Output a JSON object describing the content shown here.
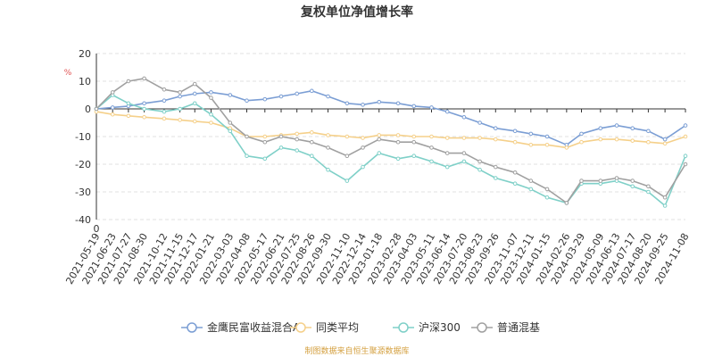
{
  "chart_data": {
    "type": "line",
    "title": "复权单位净值增长率",
    "ylabel": "",
    "unit": "%",
    "ylim": [
      -40,
      20
    ],
    "yticks": [
      -40,
      -30,
      -20,
      -10,
      0,
      10,
      20
    ],
    "xlim": [
      "2021-05-19",
      "2024-11-08"
    ],
    "xticks": [
      "2021-05-19",
      "2021-06-23",
      "2021-07-27",
      "2021-08-30",
      "2021-10-12",
      "2021-11-15",
      "2021-12-17",
      "2022-01-21",
      "2022-03-03",
      "2022-04-08",
      "2022-05-17",
      "2022-06-21",
      "2022-07-25",
      "2022-08-26",
      "2022-09-30",
      "2022-11-10",
      "2022-12-14",
      "2023-01-18",
      "2023-02-28",
      "2023-04-03",
      "2023-05-11",
      "2023-06-14",
      "2023-07-20",
      "2023-08-23",
      "2023-09-26",
      "2023-11-07",
      "2023-12-11",
      "2024-01-15",
      "2024-02-26",
      "2024-03-29",
      "2024-05-09",
      "2024-06-13",
      "2024-07-17",
      "2024-08-20",
      "2024-09-25",
      "2024-11-08"
    ],
    "zero_label": "0",
    "grid": "horizontal-dashed",
    "legend_position": "bottom",
    "series": [
      {
        "name": "金鹰民富收益混合A",
        "color": "#7b9ed4",
        "x": [
          "2021-05-19",
          "2021-06-23",
          "2021-07-27",
          "2021-08-30",
          "2021-10-12",
          "2021-11-15",
          "2021-12-17",
          "2022-01-21",
          "2022-03-03",
          "2022-04-08",
          "2022-05-17",
          "2022-06-21",
          "2022-07-25",
          "2022-08-26",
          "2022-09-30",
          "2022-11-10",
          "2022-12-14",
          "2023-01-18",
          "2023-02-28",
          "2023-04-03",
          "2023-05-11",
          "2023-06-14",
          "2023-07-20",
          "2023-08-23",
          "2023-09-26",
          "2023-11-07",
          "2023-12-11",
          "2024-01-15",
          "2024-02-26",
          "2024-03-29",
          "2024-05-09",
          "2024-06-13",
          "2024-07-17",
          "2024-08-20",
          "2024-09-25",
          "2024-11-08"
        ],
        "values": [
          0,
          0.5,
          1,
          2,
          3,
          4.5,
          5.5,
          6,
          5,
          3,
          3.5,
          4.5,
          5.5,
          6.5,
          4.5,
          2,
          1.5,
          2.5,
          2,
          1,
          0.5,
          -1,
          -3,
          -5,
          -7,
          -8,
          -9,
          -10,
          -13,
          -9,
          -7,
          -6,
          -7,
          -8,
          -11,
          -6
        ]
      },
      {
        "name": "同类平均",
        "color": "#f5d08a",
        "x": [
          "2021-05-19",
          "2021-06-23",
          "2021-07-27",
          "2021-08-30",
          "2021-10-12",
          "2021-11-15",
          "2021-12-17",
          "2022-01-21",
          "2022-03-03",
          "2022-04-08",
          "2022-05-17",
          "2022-06-21",
          "2022-07-25",
          "2022-08-26",
          "2022-09-30",
          "2022-11-10",
          "2022-12-14",
          "2023-01-18",
          "2023-02-28",
          "2023-04-03",
          "2023-05-11",
          "2023-06-14",
          "2023-07-20",
          "2023-08-23",
          "2023-09-26",
          "2023-11-07",
          "2023-12-11",
          "2024-01-15",
          "2024-02-26",
          "2024-03-29",
          "2024-05-09",
          "2024-06-13",
          "2024-07-17",
          "2024-08-20",
          "2024-09-25",
          "2024-11-08"
        ],
        "values": [
          -1,
          -2,
          -2.5,
          -3,
          -3.5,
          -4,
          -4.5,
          -5,
          -7,
          -10,
          -10,
          -9.5,
          -9,
          -8.5,
          -9.5,
          -10,
          -10.5,
          -9.5,
          -9.5,
          -10,
          -10,
          -10.5,
          -10.5,
          -10.5,
          -11,
          -12,
          -13,
          -13,
          -14,
          -12,
          -11,
          -11,
          -11.5,
          -12,
          -12.5,
          -10
        ]
      },
      {
        "name": "沪深300",
        "color": "#7fd0c8",
        "x": [
          "2021-05-19",
          "2021-06-23",
          "2021-07-27",
          "2021-08-30",
          "2021-10-12",
          "2021-11-15",
          "2021-12-17",
          "2022-01-21",
          "2022-03-03",
          "2022-04-08",
          "2022-05-17",
          "2022-06-21",
          "2022-07-25",
          "2022-08-26",
          "2022-09-30",
          "2022-11-10",
          "2022-12-14",
          "2023-01-18",
          "2023-02-28",
          "2023-04-03",
          "2023-05-11",
          "2023-06-14",
          "2023-07-20",
          "2023-08-23",
          "2023-09-26",
          "2023-11-07",
          "2023-12-11",
          "2024-01-15",
          "2024-02-26",
          "2024-03-29",
          "2024-05-09",
          "2024-06-13",
          "2024-07-17",
          "2024-08-20",
          "2024-09-25",
          "2024-11-08"
        ],
        "values": [
          0,
          5,
          2,
          0,
          -1,
          0,
          2,
          -2,
          -8,
          -17,
          -18,
          -14,
          -15,
          -17,
          -22,
          -26,
          -21,
          -16,
          -18,
          -17,
          -19,
          -21,
          -19,
          -22,
          -25,
          -27,
          -29,
          -32,
          -34,
          -27,
          -27,
          -26,
          -28,
          -30,
          -35,
          -17
        ]
      },
      {
        "name": "普通混基",
        "color": "#a0a0a0",
        "x": [
          "2021-05-19",
          "2021-06-23",
          "2021-07-27",
          "2021-08-30",
          "2021-10-12",
          "2021-11-15",
          "2021-12-17",
          "2022-01-21",
          "2022-03-03",
          "2022-04-08",
          "2022-05-17",
          "2022-06-21",
          "2022-07-25",
          "2022-08-26",
          "2022-09-30",
          "2022-11-10",
          "2022-12-14",
          "2023-01-18",
          "2023-02-28",
          "2023-04-03",
          "2023-05-11",
          "2023-06-14",
          "2023-07-20",
          "2023-08-23",
          "2023-09-26",
          "2023-11-07",
          "2023-12-11",
          "2024-01-15",
          "2024-02-26",
          "2024-03-29",
          "2024-05-09",
          "2024-06-13",
          "2024-07-17",
          "2024-08-20",
          "2024-09-25",
          "2024-11-08"
        ],
        "values": [
          0,
          6,
          10,
          11,
          7,
          6,
          9,
          4,
          -5,
          -10,
          -12,
          -10,
          -11,
          -12,
          -14,
          -17,
          -14,
          -11,
          -12,
          -12,
          -14,
          -16,
          -16,
          -19,
          -21,
          -23,
          -26,
          -29,
          -34,
          -26,
          -26,
          -25,
          -26,
          -28,
          -32,
          -20
        ]
      }
    ]
  },
  "footer": {
    "source": "制图数据来自恒生聚源数据库"
  }
}
